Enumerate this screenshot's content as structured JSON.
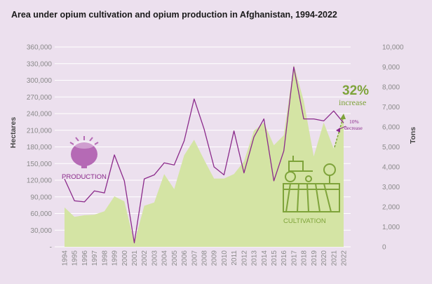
{
  "chart_data": {
    "type": "area+line",
    "title": "Area under opium cultivation and opium production in Afghanistan, 1994-2022",
    "ylabel_left": "Hectares",
    "ylabel_right": "Tons",
    "ylim_left": [
      0,
      360000
    ],
    "ylim_right": [
      0,
      10000
    ],
    "left_ticks": [
      "-",
      "30,000",
      "60,000",
      "90,000",
      "120,000",
      "150,000",
      "180,000",
      "210,000",
      "240,000",
      "270,000",
      "300,000",
      "330,000",
      "360,000"
    ],
    "right_ticks": [
      "0",
      "1,000",
      "2,000",
      "3,000",
      "4,000",
      "5,000",
      "6,000",
      "7,000",
      "8,000",
      "9,000",
      "10,000"
    ],
    "x": [
      "1994",
      "1995",
      "1996",
      "1997",
      "1998",
      "1999",
      "2000",
      "2001",
      "2002",
      "2003",
      "2004",
      "2005",
      "2006",
      "2007",
      "2008",
      "2009",
      "2010",
      "2011",
      "2012",
      "2013",
      "2014",
      "2015",
      "2016",
      "2017",
      "2018",
      "2019",
      "2020",
      "2021",
      "2022"
    ],
    "series": [
      {
        "name": "CULTIVATION",
        "axis": "left",
        "color": "#d4e4a4",
        "values": [
          71000,
          54000,
          57000,
          58000,
          64000,
          91000,
          82000,
          8000,
          74000,
          80000,
          131000,
          104000,
          165000,
          193000,
          157000,
          123000,
          123000,
          131000,
          154000,
          209000,
          224000,
          183000,
          201000,
          328000,
          263000,
          163000,
          224000,
          177000,
          233000
        ]
      },
      {
        "name": "PRODUCTION",
        "axis": "right",
        "color": "#8b2a8b",
        "values": [
          3400,
          2300,
          2250,
          2800,
          2700,
          4600,
          3300,
          200,
          3400,
          3600,
          4200,
          4100,
          5300,
          7400,
          5900,
          4000,
          3600,
          5800,
          3700,
          5500,
          6400,
          3300,
          4800,
          9000,
          6400,
          6400,
          6300,
          6800,
          6200
        ]
      }
    ],
    "annotations": {
      "increase_pct": "32%",
      "increase_word": "increase",
      "decrease_pct": "10%",
      "decrease_word": "decrease",
      "production_label": "PRODUCTION",
      "cultivation_label": "CULTIVATION"
    },
    "grid": true,
    "colors": {
      "cultivation": "#d4e4a4",
      "production": "#8b2a8b",
      "icon_green": "#7ea33a",
      "icon_purple": "#b56ab5",
      "grid": "#ffffff"
    }
  }
}
